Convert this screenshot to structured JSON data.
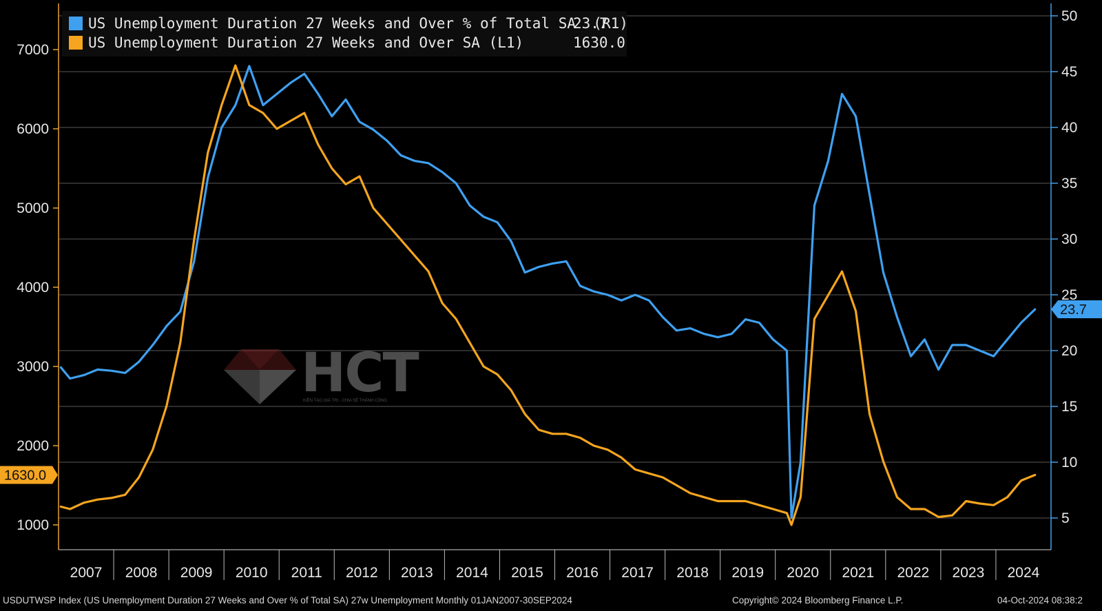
{
  "legend": {
    "series1_label": "US Unemployment Duration 27 Weeks and Over % of Total SA  (R1)",
    "series1_value": "23.7",
    "series2_label": "US Unemployment Duration 27 Weeks and Over SA (L1)",
    "series2_value": "1630.0"
  },
  "colors": {
    "series1": "#3fa0f0",
    "series2": "#f5a51f",
    "background": "#000000",
    "grid": "#5a5a5a"
  },
  "footer": {
    "left": "USDUTWSP Index (US Unemployment Duration 27 Weeks and Over % of Total SA) 27w Unemployment  Monthly 01JAN2007-30SEP2024",
    "center": "Copyright© 2024 Bloomberg Finance L.P.",
    "right": "04-Oct-2024 08:38:2"
  },
  "watermark": {
    "brand": "HCT",
    "tagline": "KIẾN TẠO GIÁ TRỊ - CHIA SẺ THÀNH CÔNG"
  },
  "chart_data": {
    "type": "line",
    "x_range": [
      "2007-01",
      "2024-09"
    ],
    "xlabels": [
      "2007",
      "2008",
      "2009",
      "2010",
      "2011",
      "2012",
      "2013",
      "2014",
      "2015",
      "2016",
      "2017",
      "2018",
      "2019",
      "2020",
      "2021",
      "2022",
      "2023",
      "2024"
    ],
    "left_axis": {
      "ticks": [
        "1000",
        "2000",
        "3000",
        "4000",
        "5000",
        "6000",
        "7000"
      ],
      "min": 1000,
      "max": 7000,
      "current_value_tag": "1630.0"
    },
    "right_axis": {
      "ticks": [
        "5",
        "10",
        "15",
        "20",
        "25",
        "30",
        "35",
        "40",
        "45",
        "50"
      ],
      "min": 5,
      "max": 50,
      "current_value_tag": "23.7"
    },
    "grid": true,
    "legend_position": "top-left",
    "series": [
      {
        "name": "US Unemployment Duration 27 Weeks and Over % of Total SA  (R1)",
        "axis": "right",
        "color": "#3fa0f0",
        "points": [
          [
            "2007-01",
            18.5
          ],
          [
            "2007-03",
            17.5
          ],
          [
            "2007-06",
            17.8
          ],
          [
            "2007-09",
            18.3
          ],
          [
            "2007-12",
            18.2
          ],
          [
            "2008-03",
            18.0
          ],
          [
            "2008-06",
            19.0
          ],
          [
            "2008-09",
            20.5
          ],
          [
            "2008-12",
            22.2
          ],
          [
            "2009-03",
            23.5
          ],
          [
            "2009-06",
            28.0
          ],
          [
            "2009-09",
            35.5
          ],
          [
            "2009-12",
            40.0
          ],
          [
            "2010-03",
            42.0
          ],
          [
            "2010-06",
            45.5
          ],
          [
            "2010-09",
            42.0
          ],
          [
            "2010-12",
            43.0
          ],
          [
            "2011-03",
            44.0
          ],
          [
            "2011-06",
            44.8
          ],
          [
            "2011-09",
            43.0
          ],
          [
            "2011-12",
            41.0
          ],
          [
            "2012-03",
            42.5
          ],
          [
            "2012-06",
            40.5
          ],
          [
            "2012-09",
            39.8
          ],
          [
            "2012-12",
            38.8
          ],
          [
            "2013-03",
            37.5
          ],
          [
            "2013-06",
            37.0
          ],
          [
            "2013-09",
            36.8
          ],
          [
            "2013-12",
            36.0
          ],
          [
            "2014-03",
            35.0
          ],
          [
            "2014-06",
            33.0
          ],
          [
            "2014-09",
            32.0
          ],
          [
            "2014-12",
            31.5
          ],
          [
            "2015-03",
            29.8
          ],
          [
            "2015-06",
            27.0
          ],
          [
            "2015-09",
            27.5
          ],
          [
            "2015-12",
            27.8
          ],
          [
            "2016-03",
            28.0
          ],
          [
            "2016-06",
            25.8
          ],
          [
            "2016-09",
            25.3
          ],
          [
            "2016-12",
            25.0
          ],
          [
            "2017-03",
            24.5
          ],
          [
            "2017-06",
            25.0
          ],
          [
            "2017-09",
            24.5
          ],
          [
            "2017-12",
            23.0
          ],
          [
            "2018-03",
            21.8
          ],
          [
            "2018-06",
            22.0
          ],
          [
            "2018-09",
            21.5
          ],
          [
            "2018-12",
            21.2
          ],
          [
            "2019-03",
            21.5
          ],
          [
            "2019-06",
            22.8
          ],
          [
            "2019-09",
            22.5
          ],
          [
            "2019-12",
            21.0
          ],
          [
            "2020-03",
            20.0
          ],
          [
            "2020-04",
            5.0
          ],
          [
            "2020-06",
            10.0
          ],
          [
            "2020-09",
            33.0
          ],
          [
            "2020-12",
            37.0
          ],
          [
            "2021-03",
            43.0
          ],
          [
            "2021-06",
            41.0
          ],
          [
            "2021-09",
            34.0
          ],
          [
            "2021-12",
            27.0
          ],
          [
            "2022-03",
            23.0
          ],
          [
            "2022-06",
            19.5
          ],
          [
            "2022-09",
            21.0
          ],
          [
            "2022-12",
            18.3
          ],
          [
            "2023-03",
            20.5
          ],
          [
            "2023-06",
            20.5
          ],
          [
            "2023-09",
            20.0
          ],
          [
            "2023-12",
            19.5
          ],
          [
            "2024-03",
            21.0
          ],
          [
            "2024-06",
            22.5
          ],
          [
            "2024-09",
            23.7
          ]
        ]
      },
      {
        "name": "US Unemployment Duration 27 Weeks and Over SA (L1)",
        "axis": "left",
        "color": "#f5a51f",
        "points": [
          [
            "2007-01",
            1230
          ],
          [
            "2007-03",
            1200
          ],
          [
            "2007-06",
            1280
          ],
          [
            "2007-09",
            1320
          ],
          [
            "2007-12",
            1340
          ],
          [
            "2008-03",
            1380
          ],
          [
            "2008-06",
            1600
          ],
          [
            "2008-09",
            1950
          ],
          [
            "2008-12",
            2500
          ],
          [
            "2009-03",
            3300
          ],
          [
            "2009-06",
            4600
          ],
          [
            "2009-09",
            5700
          ],
          [
            "2009-12",
            6300
          ],
          [
            "2010-03",
            6800
          ],
          [
            "2010-06",
            6300
          ],
          [
            "2010-09",
            6200
          ],
          [
            "2010-12",
            6000
          ],
          [
            "2011-03",
            6100
          ],
          [
            "2011-06",
            6200
          ],
          [
            "2011-09",
            5800
          ],
          [
            "2011-12",
            5500
          ],
          [
            "2012-03",
            5300
          ],
          [
            "2012-06",
            5400
          ],
          [
            "2012-09",
            5000
          ],
          [
            "2012-12",
            4800
          ],
          [
            "2013-03",
            4600
          ],
          [
            "2013-06",
            4400
          ],
          [
            "2013-09",
            4200
          ],
          [
            "2013-12",
            3800
          ],
          [
            "2014-03",
            3600
          ],
          [
            "2014-06",
            3300
          ],
          [
            "2014-09",
            3000
          ],
          [
            "2014-12",
            2900
          ],
          [
            "2015-03",
            2700
          ],
          [
            "2015-06",
            2400
          ],
          [
            "2015-09",
            2200
          ],
          [
            "2015-12",
            2150
          ],
          [
            "2016-03",
            2150
          ],
          [
            "2016-06",
            2100
          ],
          [
            "2016-09",
            2000
          ],
          [
            "2016-12",
            1950
          ],
          [
            "2017-03",
            1850
          ],
          [
            "2017-06",
            1700
          ],
          [
            "2017-09",
            1650
          ],
          [
            "2017-12",
            1600
          ],
          [
            "2018-03",
            1500
          ],
          [
            "2018-06",
            1400
          ],
          [
            "2018-09",
            1350
          ],
          [
            "2018-12",
            1300
          ],
          [
            "2019-03",
            1300
          ],
          [
            "2019-06",
            1300
          ],
          [
            "2019-09",
            1250
          ],
          [
            "2019-12",
            1200
          ],
          [
            "2020-03",
            1150
          ],
          [
            "2020-04",
            1000
          ],
          [
            "2020-06",
            1350
          ],
          [
            "2020-09",
            3600
          ],
          [
            "2020-12",
            3900
          ],
          [
            "2021-03",
            4200
          ],
          [
            "2021-06",
            3700
          ],
          [
            "2021-09",
            2400
          ],
          [
            "2021-12",
            1800
          ],
          [
            "2022-03",
            1350
          ],
          [
            "2022-06",
            1200
          ],
          [
            "2022-09",
            1200
          ],
          [
            "2022-12",
            1100
          ],
          [
            "2023-03",
            1120
          ],
          [
            "2023-06",
            1300
          ],
          [
            "2023-09",
            1270
          ],
          [
            "2023-12",
            1250
          ],
          [
            "2024-03",
            1350
          ],
          [
            "2024-06",
            1560
          ],
          [
            "2024-09",
            1630
          ]
        ]
      }
    ]
  }
}
